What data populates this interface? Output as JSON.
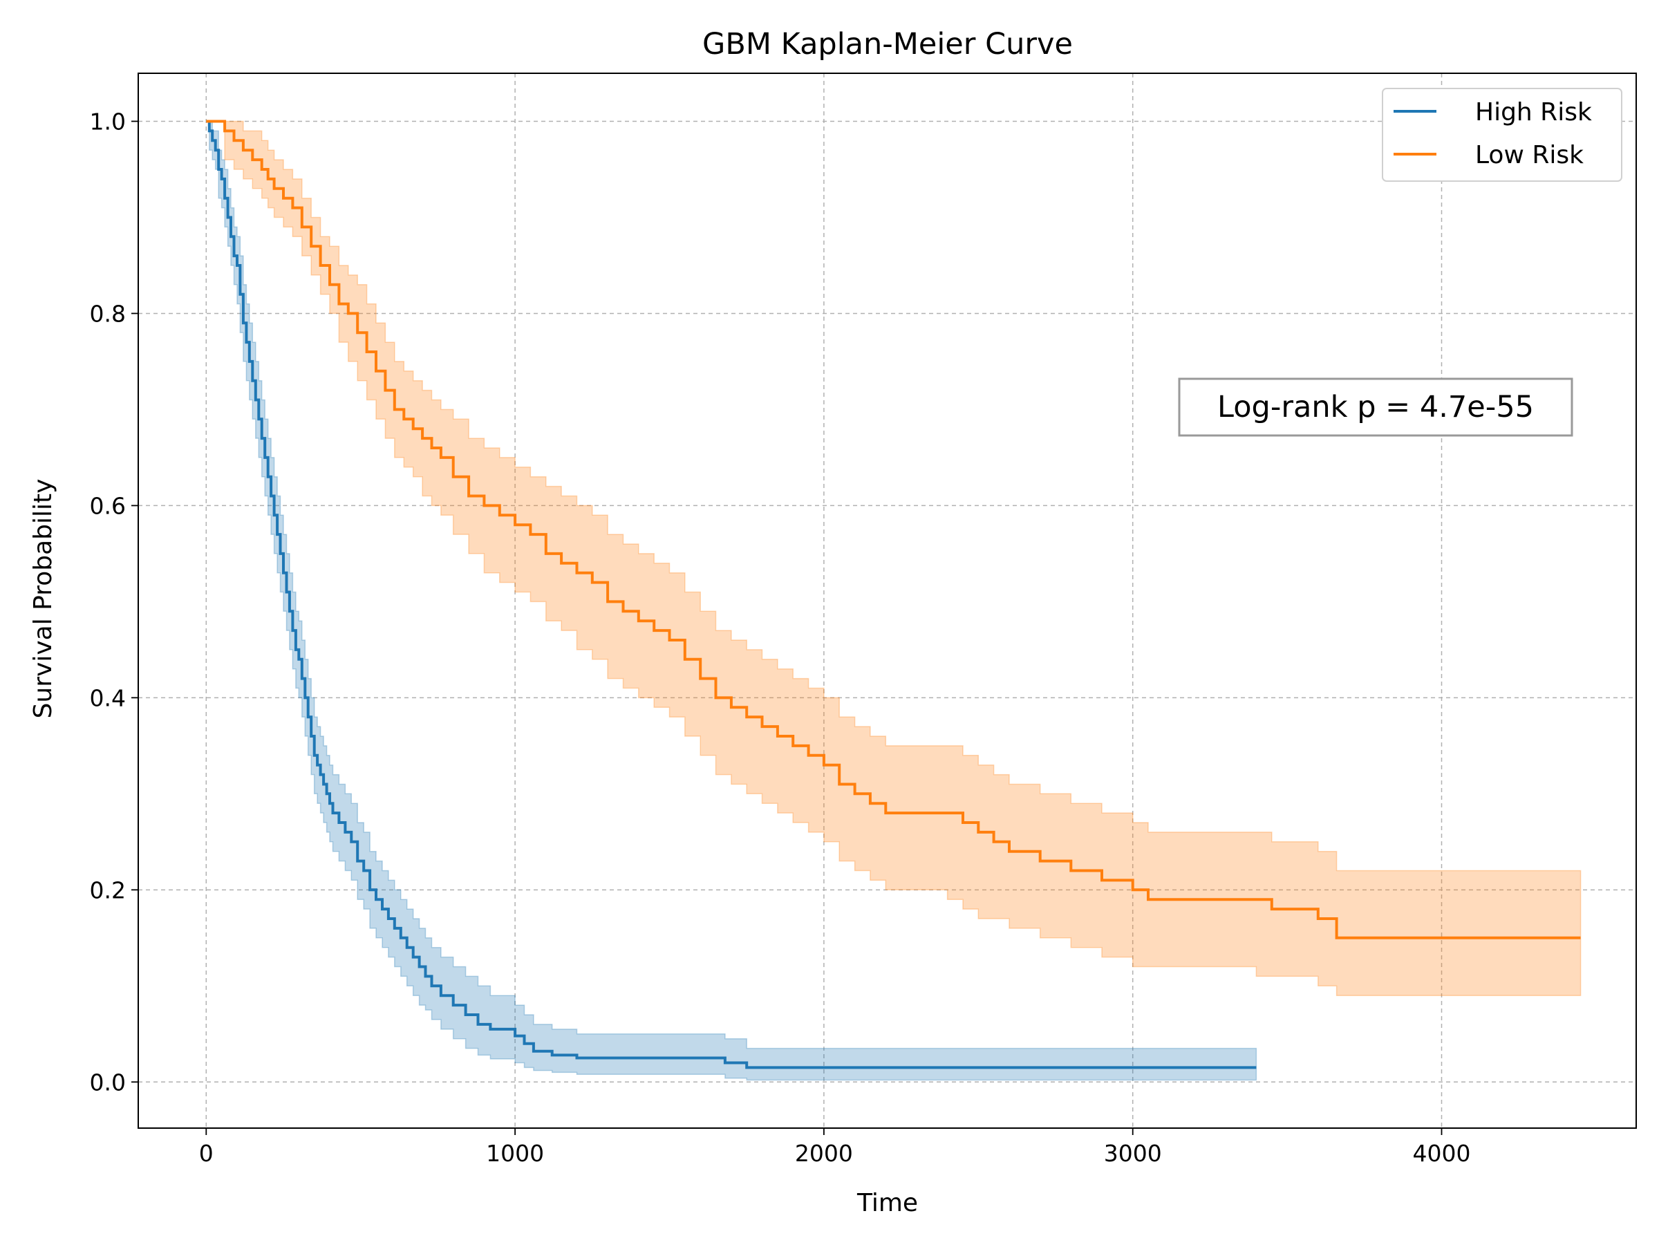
{
  "chart_data": {
    "type": "line",
    "title": "GBM Kaplan-Meier Curve",
    "xlabel": "Time",
    "ylabel": "Survival Probability",
    "xlim": [
      -220,
      4630
    ],
    "ylim": [
      -0.048,
      1.05
    ],
    "xticks": [
      0,
      1000,
      2000,
      3000,
      4000
    ],
    "yticks": [
      0.0,
      0.2,
      0.4,
      0.6,
      0.8,
      1.0
    ],
    "xtick_labels": [
      "0",
      "1000",
      "2000",
      "3000",
      "4000"
    ],
    "ytick_labels": [
      "0.0",
      "0.2",
      "0.4",
      "0.6",
      "0.8",
      "1.0"
    ],
    "grid": true,
    "legend_position": "top-right",
    "annotation": "Log-rank p = 4.7e-55",
    "series": [
      {
        "name": "High Risk",
        "color": "#1f77b4",
        "step": true,
        "x": [
          0,
          10,
          20,
          30,
          40,
          50,
          60,
          70,
          80,
          90,
          100,
          110,
          120,
          130,
          140,
          150,
          160,
          170,
          180,
          190,
          200,
          210,
          220,
          230,
          240,
          250,
          260,
          270,
          280,
          290,
          300,
          310,
          320,
          330,
          340,
          350,
          360,
          370,
          380,
          390,
          400,
          410,
          430,
          450,
          470,
          490,
          510,
          530,
          550,
          570,
          590,
          610,
          630,
          650,
          670,
          690,
          710,
          730,
          760,
          800,
          840,
          880,
          920,
          1000,
          1030,
          1060,
          1120,
          1200,
          1400,
          1600,
          1680,
          1750,
          2000,
          2500,
          3000,
          3400
        ],
        "y": [
          1.0,
          0.99,
          0.98,
          0.97,
          0.95,
          0.94,
          0.92,
          0.9,
          0.88,
          0.86,
          0.85,
          0.82,
          0.79,
          0.77,
          0.75,
          0.73,
          0.71,
          0.69,
          0.67,
          0.65,
          0.63,
          0.61,
          0.59,
          0.57,
          0.55,
          0.53,
          0.51,
          0.49,
          0.47,
          0.45,
          0.44,
          0.42,
          0.4,
          0.38,
          0.36,
          0.34,
          0.33,
          0.32,
          0.31,
          0.3,
          0.29,
          0.28,
          0.27,
          0.26,
          0.25,
          0.23,
          0.22,
          0.2,
          0.19,
          0.18,
          0.17,
          0.16,
          0.15,
          0.14,
          0.13,
          0.12,
          0.11,
          0.1,
          0.09,
          0.08,
          0.07,
          0.06,
          0.055,
          0.048,
          0.04,
          0.032,
          0.028,
          0.025,
          0.025,
          0.025,
          0.02,
          0.015,
          0.015,
          0.015,
          0.015,
          0.015
        ],
        "ci_lower": [
          1.0,
          0.97,
          0.96,
          0.95,
          0.92,
          0.91,
          0.89,
          0.87,
          0.85,
          0.83,
          0.81,
          0.78,
          0.75,
          0.73,
          0.71,
          0.69,
          0.67,
          0.65,
          0.63,
          0.61,
          0.59,
          0.57,
          0.55,
          0.53,
          0.51,
          0.49,
          0.47,
          0.45,
          0.43,
          0.41,
          0.4,
          0.38,
          0.36,
          0.34,
          0.32,
          0.3,
          0.29,
          0.28,
          0.27,
          0.26,
          0.25,
          0.24,
          0.23,
          0.22,
          0.21,
          0.19,
          0.18,
          0.16,
          0.15,
          0.14,
          0.13,
          0.12,
          0.11,
          0.1,
          0.09,
          0.08,
          0.075,
          0.065,
          0.055,
          0.045,
          0.035,
          0.028,
          0.024,
          0.02,
          0.015,
          0.012,
          0.01,
          0.008,
          0.008,
          0.008,
          0.004,
          0.002,
          0.002,
          0.002,
          0.002,
          0.002
        ],
        "ci_upper": [
          1.0,
          1.0,
          0.99,
          0.99,
          0.97,
          0.96,
          0.95,
          0.93,
          0.91,
          0.89,
          0.88,
          0.86,
          0.83,
          0.81,
          0.79,
          0.77,
          0.75,
          0.73,
          0.71,
          0.69,
          0.67,
          0.65,
          0.63,
          0.61,
          0.59,
          0.57,
          0.55,
          0.53,
          0.51,
          0.49,
          0.48,
          0.46,
          0.44,
          0.42,
          0.4,
          0.38,
          0.37,
          0.36,
          0.35,
          0.34,
          0.33,
          0.32,
          0.31,
          0.3,
          0.29,
          0.27,
          0.26,
          0.24,
          0.23,
          0.22,
          0.21,
          0.2,
          0.19,
          0.18,
          0.17,
          0.16,
          0.15,
          0.14,
          0.13,
          0.12,
          0.11,
          0.1,
          0.09,
          0.08,
          0.07,
          0.06,
          0.055,
          0.05,
          0.05,
          0.05,
          0.045,
          0.035,
          0.035,
          0.035,
          0.035,
          0.035
        ]
      },
      {
        "name": "Low Risk",
        "color": "#ff7f0e",
        "step": true,
        "x": [
          0,
          60,
          90,
          120,
          150,
          180,
          200,
          220,
          250,
          280,
          310,
          340,
          370,
          400,
          430,
          460,
          490,
          520,
          550,
          580,
          610,
          640,
          670,
          700,
          730,
          760,
          800,
          850,
          900,
          950,
          1000,
          1050,
          1100,
          1150,
          1200,
          1250,
          1300,
          1350,
          1400,
          1450,
          1500,
          1550,
          1600,
          1650,
          1700,
          1750,
          1800,
          1850,
          1900,
          1950,
          2000,
          2050,
          2100,
          2150,
          2200,
          2300,
          2400,
          2450,
          2500,
          2550,
          2600,
          2700,
          2800,
          2900,
          3000,
          3050,
          3200,
          3400,
          3450,
          3600,
          3660,
          4450
        ],
        "y": [
          1.0,
          0.99,
          0.98,
          0.97,
          0.96,
          0.95,
          0.94,
          0.93,
          0.92,
          0.91,
          0.89,
          0.87,
          0.85,
          0.83,
          0.81,
          0.8,
          0.78,
          0.76,
          0.74,
          0.72,
          0.7,
          0.69,
          0.68,
          0.67,
          0.66,
          0.65,
          0.63,
          0.61,
          0.6,
          0.59,
          0.58,
          0.57,
          0.55,
          0.54,
          0.53,
          0.52,
          0.5,
          0.49,
          0.48,
          0.47,
          0.46,
          0.44,
          0.42,
          0.4,
          0.39,
          0.38,
          0.37,
          0.36,
          0.35,
          0.34,
          0.33,
          0.31,
          0.3,
          0.29,
          0.28,
          0.28,
          0.28,
          0.27,
          0.26,
          0.25,
          0.24,
          0.23,
          0.22,
          0.21,
          0.2,
          0.19,
          0.19,
          0.19,
          0.18,
          0.17,
          0.15,
          0.15
        ],
        "ci_lower": [
          1.0,
          0.96,
          0.95,
          0.94,
          0.93,
          0.92,
          0.91,
          0.9,
          0.89,
          0.88,
          0.86,
          0.84,
          0.82,
          0.8,
          0.77,
          0.75,
          0.73,
          0.71,
          0.69,
          0.67,
          0.65,
          0.64,
          0.63,
          0.61,
          0.6,
          0.59,
          0.57,
          0.55,
          0.53,
          0.52,
          0.51,
          0.5,
          0.48,
          0.47,
          0.45,
          0.44,
          0.42,
          0.41,
          0.4,
          0.39,
          0.38,
          0.36,
          0.34,
          0.32,
          0.31,
          0.3,
          0.29,
          0.28,
          0.27,
          0.26,
          0.25,
          0.23,
          0.22,
          0.21,
          0.2,
          0.2,
          0.19,
          0.18,
          0.17,
          0.17,
          0.16,
          0.15,
          0.14,
          0.13,
          0.12,
          0.12,
          0.12,
          0.11,
          0.11,
          0.1,
          0.09,
          0.09
        ],
        "ci_upper": [
          1.0,
          1.0,
          1.0,
          0.99,
          0.99,
          0.98,
          0.97,
          0.96,
          0.95,
          0.94,
          0.92,
          0.9,
          0.88,
          0.87,
          0.85,
          0.84,
          0.83,
          0.81,
          0.79,
          0.77,
          0.75,
          0.74,
          0.73,
          0.72,
          0.71,
          0.7,
          0.69,
          0.67,
          0.66,
          0.65,
          0.64,
          0.63,
          0.62,
          0.61,
          0.6,
          0.59,
          0.57,
          0.56,
          0.55,
          0.54,
          0.53,
          0.51,
          0.49,
          0.47,
          0.46,
          0.45,
          0.44,
          0.43,
          0.42,
          0.41,
          0.4,
          0.38,
          0.37,
          0.36,
          0.35,
          0.35,
          0.35,
          0.34,
          0.33,
          0.32,
          0.31,
          0.3,
          0.29,
          0.28,
          0.27,
          0.26,
          0.26,
          0.26,
          0.25,
          0.24,
          0.22,
          0.22
        ]
      }
    ]
  }
}
